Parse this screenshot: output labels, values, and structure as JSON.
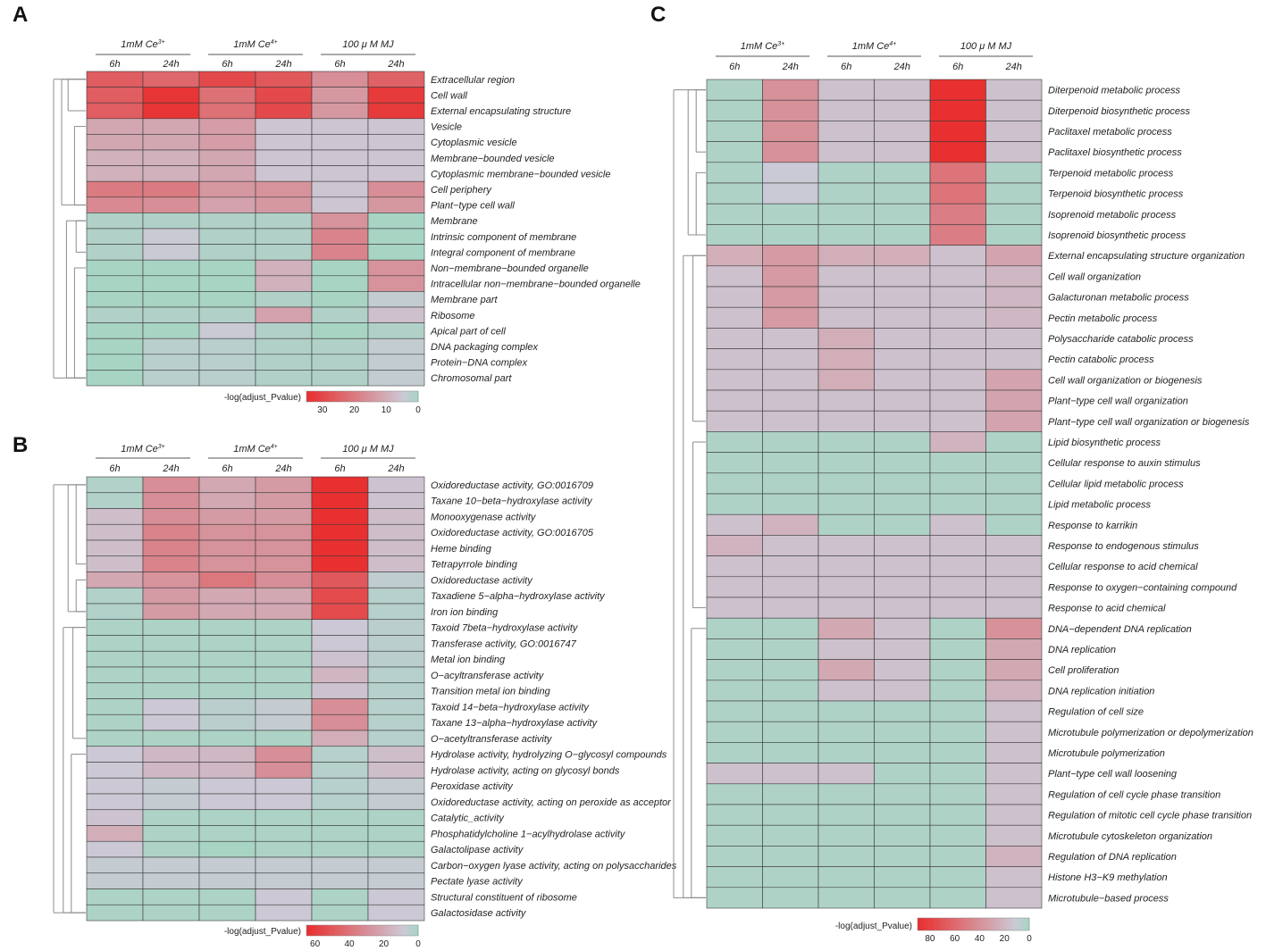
{
  "colors": {
    "high": "#e83030",
    "mid": "#ccc9d6",
    "low": "#a8d4c4",
    "grid": "#3a3a3a",
    "dendro": "#8c8c8c"
  },
  "chart_data": [
    {
      "panel": "A",
      "type": "heatmap",
      "groups": [
        {
          "label": "1mM Ce",
          "sup": "3+",
          "columns": [
            "6h",
            "24h"
          ]
        },
        {
          "label": "1mM Ce",
          "sup": "4+",
          "columns": [
            "6h",
            "24h"
          ]
        },
        {
          "label": "100 μ M MJ",
          "sup": "",
          "columns": [
            "6h",
            "24h"
          ]
        }
      ],
      "rows": [
        "Extracellular region",
        "Cell wall",
        "External encapsulating structure",
        "Vesicle",
        "Cytoplasmic vesicle",
        "Membrane−bounded vesicle",
        "Cytoplasmic membrane−bounded vesicle",
        "Cell periphery",
        "Plant−type cell wall",
        "Membrane",
        "Intrinsic component of membrane",
        "Integral component of membrane",
        "Non−membrane−bounded organelle",
        "Intracellular non−membrane−bounded organelle",
        "Membrane part",
        "Ribosome",
        "Apical part of cell",
        "DNA packaging complex",
        "Protein−DNA complex",
        "Chromosomal part"
      ],
      "values": [
        [
          26,
          24,
          30,
          27,
          16,
          25
        ],
        [
          26,
          34,
          22,
          30,
          14,
          33
        ],
        [
          26,
          34,
          22,
          30,
          14,
          33
        ],
        [
          11,
          11,
          13,
          5,
          5,
          5
        ],
        [
          11,
          11,
          13,
          5,
          5,
          5
        ],
        [
          9,
          9,
          11,
          5,
          5,
          5
        ],
        [
          9,
          9,
          11,
          5,
          5,
          5
        ],
        [
          20,
          20,
          14,
          15,
          5,
          16
        ],
        [
          17,
          16,
          12,
          14,
          5,
          14
        ],
        [
          1,
          1,
          1,
          1,
          15,
          0
        ],
        [
          1,
          4,
          1,
          1,
          18,
          0
        ],
        [
          1,
          4,
          1,
          1,
          18,
          0
        ],
        [
          0,
          0,
          0,
          9,
          0,
          15
        ],
        [
          0,
          0,
          0,
          9,
          0,
          15
        ],
        [
          0,
          0,
          0,
          1,
          0,
          3
        ],
        [
          1,
          1,
          1,
          12,
          1,
          6
        ],
        [
          0,
          0,
          4,
          1,
          0,
          1
        ],
        [
          0,
          2,
          2,
          1,
          1,
          3
        ],
        [
          0,
          2,
          2,
          1,
          1,
          3
        ],
        [
          0,
          2,
          2,
          1,
          1,
          3
        ]
      ],
      "colorbar": {
        "title": "-log(adjust_Pvalue)",
        "ticks": [
          30,
          20,
          10,
          0
        ],
        "range": [
          0,
          35
        ]
      }
    },
    {
      "panel": "B",
      "type": "heatmap",
      "groups": [
        {
          "label": "1mM Ce",
          "sup": "3+",
          "columns": [
            "6h",
            "24h"
          ]
        },
        {
          "label": "1mM Ce",
          "sup": "4+",
          "columns": [
            "6h",
            "24h"
          ]
        },
        {
          "label": "100 μ M MJ",
          "sup": "",
          "columns": [
            "6h",
            "24h"
          ]
        }
      ],
      "rows": [
        "Oxidoreductase activity, GO:0016709",
        "Taxane 10−beta−hydroxylase activity",
        "Monooxygenase activity",
        "Oxidoreductase activity, GO:0016705",
        "Heme binding",
        "Tetrapyrrole binding",
        "Oxidoreductase activity",
        "Taxadiene 5−alpha−hydroxylase activity",
        "Iron ion binding",
        "Taxoid 7beta−hydroxylase activity",
        "Transferase activity, GO:0016747",
        "Metal ion binding",
        "O−acyltransferase activity",
        "Transition metal ion binding",
        "Taxoid 14−beta−hydroxylase activity",
        "Taxane 13−alpha−hydroxylase activity",
        "O−acetyltransferase activity",
        "Hydrolase activity, hydrolyzing O−glycosyl compounds",
        "Hydrolase activity, acting on glycosyl bonds",
        "Peroxidase activity",
        "Oxidoreductase activity, acting on peroxide as acceptor",
        "Catalytic_activity",
        "Phosphatidylcholine 1−acylhydrolase activity",
        "Galactolipase activity",
        "Carbon−oxygen lyase activity, acting on polysaccharides",
        "Pectate lyase activity",
        "Structural constituent of ribosome",
        "Galactosidase activity"
      ],
      "values": [
        [
          2,
          30,
          20,
          25,
          65,
          10
        ],
        [
          2,
          30,
          20,
          25,
          65,
          10
        ],
        [
          12,
          30,
          25,
          25,
          65,
          12
        ],
        [
          12,
          34,
          28,
          28,
          65,
          12
        ],
        [
          12,
          34,
          28,
          28,
          65,
          12
        ],
        [
          12,
          34,
          28,
          28,
          65,
          12
        ],
        [
          20,
          28,
          38,
          30,
          50,
          5
        ],
        [
          2,
          25,
          20,
          20,
          55,
          3
        ],
        [
          2,
          25,
          20,
          20,
          55,
          3
        ],
        [
          1,
          1,
          1,
          1,
          8,
          4
        ],
        [
          1,
          1,
          1,
          1,
          8,
          4
        ],
        [
          1,
          1,
          1,
          1,
          10,
          4
        ],
        [
          1,
          1,
          1,
          1,
          15,
          3
        ],
        [
          1,
          1,
          1,
          1,
          10,
          3
        ],
        [
          1,
          8,
          4,
          6,
          30,
          3
        ],
        [
          1,
          8,
          4,
          6,
          30,
          3
        ],
        [
          1,
          1,
          1,
          1,
          18,
          3
        ],
        [
          8,
          14,
          14,
          30,
          3,
          12
        ],
        [
          8,
          14,
          14,
          30,
          3,
          12
        ],
        [
          8,
          6,
          8,
          8,
          3,
          6
        ],
        [
          8,
          6,
          8,
          8,
          3,
          6
        ],
        [
          10,
          1,
          1,
          1,
          1,
          1
        ],
        [
          18,
          1,
          1,
          1,
          1,
          1
        ],
        [
          8,
          1,
          0,
          1,
          1,
          1
        ],
        [
          6,
          6,
          6,
          6,
          6,
          6
        ],
        [
          6,
          6,
          6,
          6,
          6,
          6
        ],
        [
          1,
          1,
          1,
          8,
          1,
          8
        ],
        [
          1,
          1,
          1,
          8,
          1,
          8
        ]
      ],
      "colorbar": {
        "title": "-log(adjust_Pvalue)",
        "ticks": [
          60,
          40,
          20,
          0
        ],
        "range": [
          0,
          65
        ]
      }
    },
    {
      "panel": "C",
      "type": "heatmap",
      "groups": [
        {
          "label": "1mM Ce",
          "sup": "3+",
          "columns": [
            "6h",
            "24h"
          ]
        },
        {
          "label": "1mM Ce",
          "sup": "4+",
          "columns": [
            "6h",
            "24h"
          ]
        },
        {
          "label": "100 μ M MJ",
          "sup": "",
          "columns": [
            "6h",
            "24h"
          ]
        }
      ],
      "rows": [
        "Diterpenoid metabolic process",
        "Diterpenoid biosynthetic process",
        "Paclitaxel metabolic process",
        "Paclitaxel biosynthetic process",
        "Terpenoid metabolic process",
        "Terpenoid biosynthetic process",
        "Isoprenoid metabolic process",
        "Isoprenoid biosynthetic process",
        "External encapsulating structure organization",
        "Cell wall organization",
        "Galacturonan metabolic process",
        "Pectin metabolic process",
        "Polysaccharide catabolic process",
        "Pectin catabolic process",
        "Cell wall organization or biogenesis",
        "Plant−type cell wall organization",
        "Plant−type cell wall organization or biogenesis",
        "Lipid biosynthetic process",
        "Cellular response to auxin stimulus",
        "Cellular lipid metabolic process",
        "Lipid metabolic process",
        "Response to karrikin",
        "Response to endogenous stimulus",
        "Cellular response to acid chemical",
        "Response to oxygen−containing compound",
        "Response to acid chemical",
        "DNA−dependent DNA replication",
        "DNA replication",
        "Cell proliferation",
        "DNA replication initiation",
        "Regulation of cell size",
        "Microtubule polymerization or depolymerization",
        "Microtubule polymerization",
        "Plant−type cell wall loosening",
        "Regulation of cell cycle phase transition",
        "Regulation of mitotic cell cycle phase transition",
        "Microtubule cytoskeleton organization",
        "Regulation of DNA replication",
        "Histone H3−K9 methylation",
        "Microtubule−based process"
      ],
      "values": [
        [
          2,
          40,
          15,
          15,
          90,
          15
        ],
        [
          2,
          40,
          15,
          15,
          90,
          15
        ],
        [
          2,
          40,
          15,
          15,
          90,
          15
        ],
        [
          2,
          40,
          15,
          15,
          90,
          15
        ],
        [
          2,
          10,
          2,
          2,
          55,
          2
        ],
        [
          2,
          10,
          2,
          2,
          55,
          2
        ],
        [
          2,
          2,
          2,
          2,
          50,
          2
        ],
        [
          2,
          2,
          2,
          2,
          50,
          2
        ],
        [
          25,
          35,
          25,
          25,
          15,
          30
        ],
        [
          15,
          35,
          15,
          15,
          15,
          20
        ],
        [
          15,
          35,
          15,
          15,
          15,
          20
        ],
        [
          15,
          35,
          15,
          15,
          15,
          20
        ],
        [
          15,
          15,
          25,
          15,
          15,
          15
        ],
        [
          15,
          15,
          25,
          15,
          15,
          15
        ],
        [
          15,
          15,
          25,
          15,
          15,
          30
        ],
        [
          15,
          15,
          15,
          15,
          15,
          30
        ],
        [
          15,
          15,
          15,
          15,
          15,
          30
        ],
        [
          2,
          2,
          2,
          2,
          22,
          2
        ],
        [
          2,
          2,
          2,
          2,
          2,
          2
        ],
        [
          2,
          2,
          2,
          2,
          2,
          2
        ],
        [
          2,
          2,
          2,
          2,
          2,
          2
        ],
        [
          15,
          22,
          2,
          2,
          15,
          2
        ],
        [
          22,
          15,
          15,
          15,
          15,
          15
        ],
        [
          15,
          15,
          15,
          15,
          15,
          15
        ],
        [
          15,
          15,
          15,
          15,
          15,
          15
        ],
        [
          15,
          15,
          15,
          15,
          15,
          15
        ],
        [
          2,
          2,
          28,
          15,
          2,
          40
        ],
        [
          2,
          2,
          15,
          15,
          2,
          28
        ],
        [
          2,
          2,
          28,
          15,
          2,
          28
        ],
        [
          2,
          2,
          15,
          15,
          2,
          22
        ],
        [
          2,
          2,
          2,
          2,
          2,
          15
        ],
        [
          2,
          2,
          2,
          2,
          2,
          15
        ],
        [
          2,
          2,
          2,
          2,
          2,
          15
        ],
        [
          15,
          15,
          15,
          2,
          2,
          15
        ],
        [
          2,
          2,
          2,
          2,
          2,
          15
        ],
        [
          2,
          2,
          2,
          2,
          2,
          15
        ],
        [
          2,
          2,
          2,
          2,
          2,
          15
        ],
        [
          2,
          2,
          2,
          2,
          2,
          22
        ],
        [
          2,
          2,
          2,
          2,
          2,
          15
        ],
        [
          2,
          2,
          2,
          2,
          2,
          15
        ]
      ],
      "colorbar": {
        "title": "-log(adjust_Pvalue)",
        "ticks": [
          80,
          60,
          40,
          20,
          0
        ],
        "range": [
          0,
          90
        ]
      }
    }
  ]
}
